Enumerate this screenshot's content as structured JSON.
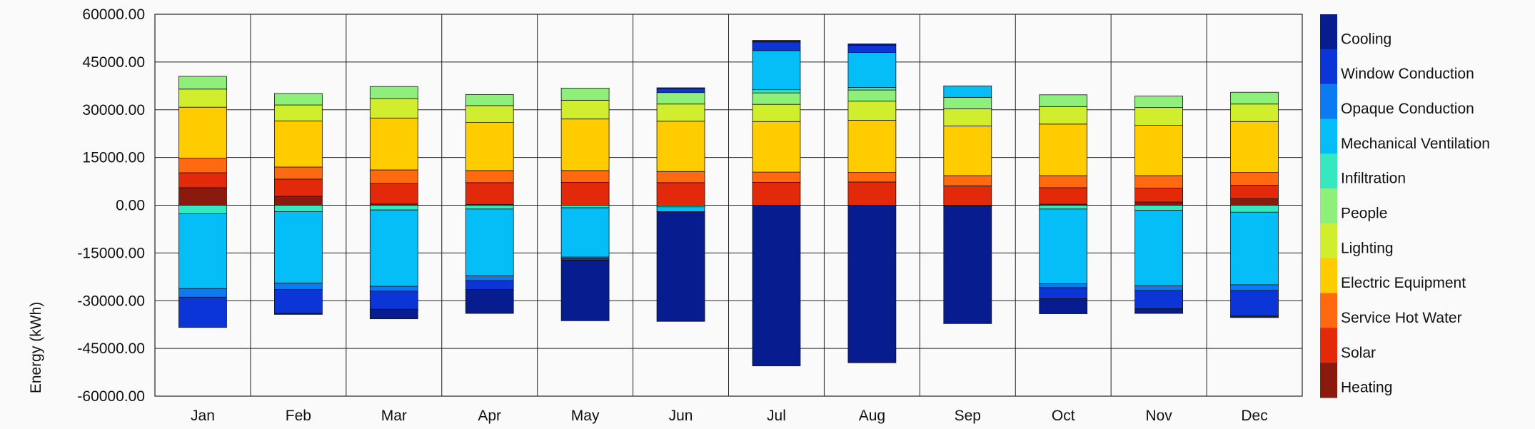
{
  "chart_data": {
    "type": "bar",
    "stacked": true,
    "title": "",
    "xlabel": "",
    "ylabel": "Energy (kWh)",
    "ylim": [
      -60000,
      60000
    ],
    "yticks": [
      60000,
      45000,
      30000,
      15000,
      0,
      -15000,
      -30000,
      -45000,
      -60000
    ],
    "ytick_labels": [
      "60000.00",
      "45000.00",
      "30000.00",
      "15000.00",
      "0.00",
      "-15000.00",
      "-30000.00",
      "-45000.00",
      "-60000.00"
    ],
    "categories": [
      "Jan",
      "Feb",
      "Mar",
      "Apr",
      "May",
      "Jun",
      "Jul",
      "Aug",
      "Sep",
      "Oct",
      "Nov",
      "Dec"
    ],
    "legend_position": "right",
    "series": [
      {
        "name": "Heating",
        "color": "#8b1a0e",
        "positive": [
          5500,
          2800,
          400,
          200,
          0,
          0,
          0,
          0,
          0,
          300,
          1000,
          2000
        ],
        "negative": [
          0,
          0,
          0,
          0,
          0,
          0,
          0,
          0,
          0,
          0,
          0,
          0
        ]
      },
      {
        "name": "Solar",
        "color": "#e22a0a",
        "positive": [
          4700,
          5400,
          6400,
          6900,
          7200,
          7100,
          7200,
          7300,
          6100,
          5200,
          4400,
          4300
        ],
        "negative": [
          0,
          0,
          0,
          0,
          0,
          0,
          0,
          0,
          0,
          0,
          0,
          0
        ]
      },
      {
        "name": "Service Hot Water",
        "color": "#ff6a10",
        "positive": [
          4600,
          3800,
          4300,
          3800,
          3700,
          3500,
          3200,
          3000,
          3200,
          3800,
          3900,
          4000
        ],
        "negative": [
          0,
          0,
          0,
          0,
          0,
          0,
          0,
          0,
          0,
          0,
          0,
          0
        ]
      },
      {
        "name": "Electric Equipment",
        "color": "#ffcc00",
        "positive": [
          16000,
          14500,
          16300,
          15100,
          16200,
          15800,
          15900,
          16400,
          15600,
          16200,
          15800,
          16000
        ],
        "negative": [
          0,
          0,
          0,
          0,
          0,
          0,
          0,
          0,
          0,
          0,
          0,
          0
        ]
      },
      {
        "name": "Lighting",
        "color": "#d0ee2e",
        "positive": [
          5700,
          5000,
          6100,
          5300,
          5900,
          5400,
          5400,
          6000,
          5400,
          5500,
          5600,
          5500
        ],
        "negative": [
          0,
          0,
          0,
          0,
          0,
          0,
          0,
          0,
          0,
          0,
          0,
          0
        ]
      },
      {
        "name": "People",
        "color": "#8ef07a",
        "positive": [
          4000,
          3600,
          3800,
          3500,
          3800,
          3600,
          3600,
          3500,
          3600,
          3700,
          3600,
          3700
        ],
        "negative": [
          0,
          0,
          0,
          0,
          0,
          0,
          0,
          0,
          0,
          0,
          0,
          0
        ]
      },
      {
        "name": "Infiltration",
        "color": "#35e8c0",
        "positive": [
          0,
          0,
          0,
          0,
          0,
          0,
          1000,
          800,
          0,
          0,
          0,
          0
        ],
        "negative": [
          -2700,
          -2000,
          -1500,
          -1200,
          -800,
          -500,
          0,
          0,
          -200,
          -1200,
          -1600,
          -2200
        ]
      },
      {
        "name": "Mechanical Ventilation",
        "color": "#05bdf7",
        "positive": [
          0,
          0,
          0,
          0,
          0,
          0,
          12300,
          11000,
          3600,
          0,
          0,
          0
        ],
        "negative": [
          -23500,
          -22500,
          -24000,
          -21000,
          -15500,
          -1500,
          0,
          0,
          0,
          -23500,
          -23700,
          -22800
        ]
      },
      {
        "name": "Opaque Conduction",
        "color": "#0c7bf2",
        "positive": [
          0,
          0,
          0,
          0,
          0,
          0,
          0,
          0,
          0,
          0,
          0,
          0
        ],
        "negative": [
          -2700,
          -2000,
          -1500,
          -1500,
          -500,
          0,
          0,
          0,
          0,
          -1200,
          -1500,
          -1800
        ]
      },
      {
        "name": "Window Conduction",
        "color": "#0c35d8",
        "positive": [
          0,
          0,
          0,
          0,
          0,
          1300,
          2700,
          2300,
          0,
          0,
          0,
          0
        ],
        "negative": [
          -9500,
          -7500,
          -5700,
          -2800,
          -500,
          0,
          0,
          0,
          0,
          -3500,
          -5700,
          -8000
        ]
      },
      {
        "name": "Cooling",
        "color": "#071d8f",
        "positive": [
          0,
          0,
          0,
          0,
          0,
          200,
          500,
          400,
          0,
          0,
          0,
          0
        ],
        "negative": [
          0,
          -300,
          -3000,
          -7500,
          -19000,
          -34500,
          -50500,
          -49500,
          -37000,
          -4700,
          -1500,
          -500
        ]
      }
    ]
  }
}
